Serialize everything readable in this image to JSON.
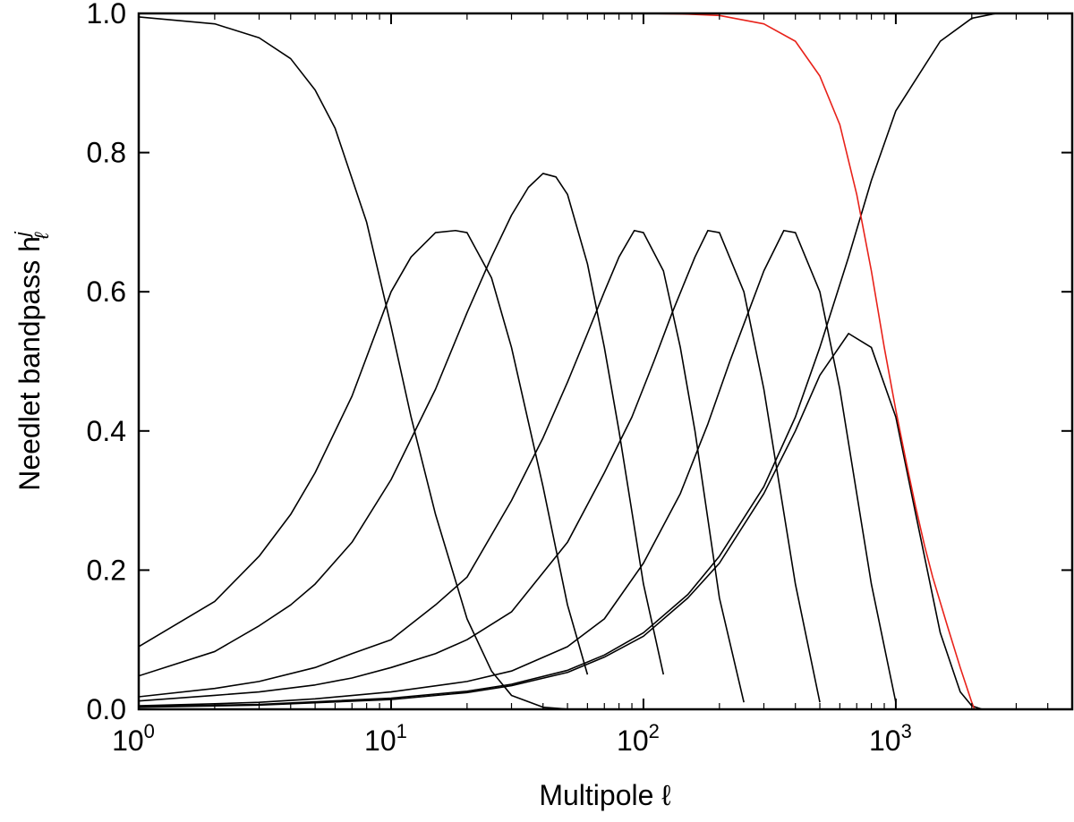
{
  "chart_data": {
    "type": "line",
    "xlabel": "Multipole ℓ",
    "ylabel": "Needlet bandpass h",
    "ylabel_sup": "j",
    "ylabel_sub": "ℓ",
    "xscale": "log",
    "xlim": [
      1,
      5000
    ],
    "ylim": [
      0,
      1
    ],
    "x_ticks": [
      {
        "value": 1,
        "base": "10",
        "exp": "0"
      },
      {
        "value": 10,
        "base": "10",
        "exp": "1"
      },
      {
        "value": 100,
        "base": "10",
        "exp": "2"
      },
      {
        "value": 1000,
        "base": "10",
        "exp": "3"
      }
    ],
    "y_ticks": [
      {
        "value": 0.0,
        "label": "0.0"
      },
      {
        "value": 0.2,
        "label": "0.2"
      },
      {
        "value": 0.4,
        "label": "0.4"
      },
      {
        "value": 0.6,
        "label": "0.6"
      },
      {
        "value": 0.8,
        "label": "0.8"
      },
      {
        "value": 1.0,
        "label": "1.0"
      }
    ],
    "grid": false,
    "series": [
      {
        "color": "#000000",
        "x": [
          1,
          2,
          3,
          4,
          5,
          6,
          8,
          10,
          12,
          15,
          20,
          25,
          30,
          40,
          50,
          60
        ],
        "y": [
          0.995,
          0.985,
          0.965,
          0.935,
          0.89,
          0.835,
          0.7,
          0.55,
          0.42,
          0.28,
          0.13,
          0.055,
          0.02,
          0.003,
          0.0003,
          0.0
        ]
      },
      {
        "color": "#000000",
        "x": [
          1,
          2,
          3,
          4,
          5,
          7,
          10,
          12,
          15,
          18,
          20,
          25,
          30,
          40,
          50,
          60
        ],
        "y": [
          0.09,
          0.155,
          0.22,
          0.28,
          0.34,
          0.45,
          0.6,
          0.65,
          0.685,
          0.688,
          0.685,
          0.62,
          0.52,
          0.32,
          0.15,
          0.05
        ]
      },
      {
        "color": "#000000",
        "x": [
          1,
          2,
          3,
          4,
          5,
          7,
          10,
          15,
          20,
          25,
          30,
          35,
          40,
          45,
          50,
          60,
          70,
          80,
          100,
          120
        ],
        "y": [
          0.048,
          0.083,
          0.12,
          0.15,
          0.18,
          0.24,
          0.33,
          0.46,
          0.57,
          0.65,
          0.71,
          0.75,
          0.77,
          0.765,
          0.74,
          0.64,
          0.52,
          0.4,
          0.18,
          0.05
        ]
      },
      {
        "color": "#000000",
        "x": [
          1,
          2,
          3,
          5,
          7,
          10,
          15,
          20,
          30,
          40,
          50,
          60,
          70,
          80,
          92,
          100,
          120,
          140,
          160,
          200,
          250
        ],
        "y": [
          0.018,
          0.03,
          0.04,
          0.06,
          0.08,
          0.1,
          0.15,
          0.19,
          0.3,
          0.39,
          0.47,
          0.54,
          0.6,
          0.65,
          0.688,
          0.685,
          0.63,
          0.52,
          0.4,
          0.16,
          0.01
        ]
      },
      {
        "color": "#000000",
        "x": [
          1,
          2,
          3,
          5,
          7,
          10,
          15,
          20,
          30,
          50,
          70,
          90,
          110,
          130,
          160,
          180,
          200,
          250,
          300,
          350,
          400,
          500
        ],
        "y": [
          0.012,
          0.02,
          0.025,
          0.035,
          0.045,
          0.06,
          0.08,
          0.1,
          0.14,
          0.24,
          0.34,
          0.42,
          0.5,
          0.57,
          0.65,
          0.688,
          0.685,
          0.6,
          0.46,
          0.31,
          0.18,
          0.01
        ]
      },
      {
        "color": "#000000",
        "x": [
          1,
          2,
          3,
          5,
          10,
          20,
          30,
          50,
          70,
          100,
          140,
          180,
          220,
          260,
          300,
          360,
          400,
          500,
          600,
          700,
          800,
          1000
        ],
        "y": [
          0.005,
          0.008,
          0.01,
          0.015,
          0.025,
          0.04,
          0.055,
          0.09,
          0.13,
          0.21,
          0.31,
          0.41,
          0.5,
          0.57,
          0.63,
          0.688,
          0.685,
          0.6,
          0.46,
          0.31,
          0.18,
          0.01
        ]
      },
      {
        "color": "#000000",
        "x": [
          1,
          3,
          10,
          20,
          30,
          50,
          70,
          100,
          150,
          200,
          300,
          400,
          500,
          650,
          800,
          1000,
          1200,
          1500,
          1800,
          2000,
          2200
        ],
        "y": [
          0.003,
          0.006,
          0.014,
          0.024,
          0.034,
          0.053,
          0.075,
          0.105,
          0.16,
          0.21,
          0.31,
          0.4,
          0.48,
          0.54,
          0.52,
          0.42,
          0.28,
          0.11,
          0.025,
          0.005,
          0.0
        ]
      },
      {
        "color": "#000000",
        "x": [
          1,
          3,
          10,
          20,
          30,
          50,
          70,
          100,
          150,
          200,
          300,
          400,
          500,
          650,
          800,
          1000,
          1500,
          2000,
          2500,
          2800
        ],
        "y": [
          0.004,
          0.007,
          0.016,
          0.026,
          0.036,
          0.056,
          0.078,
          0.11,
          0.165,
          0.22,
          0.32,
          0.42,
          0.52,
          0.65,
          0.76,
          0.86,
          0.96,
          0.993,
          1.0,
          1.0
        ]
      },
      {
        "color": "#e8221a",
        "x": [
          50,
          100,
          150,
          200,
          300,
          400,
          500,
          600,
          700,
          800,
          900,
          1000,
          1100,
          1200,
          1300,
          1400,
          1600,
          1800,
          2000,
          2050
        ],
        "y": [
          1.0,
          1.0,
          0.999,
          0.997,
          0.985,
          0.96,
          0.91,
          0.84,
          0.74,
          0.63,
          0.52,
          0.43,
          0.355,
          0.29,
          0.235,
          0.19,
          0.12,
          0.06,
          0.01,
          0.0
        ]
      }
    ]
  }
}
